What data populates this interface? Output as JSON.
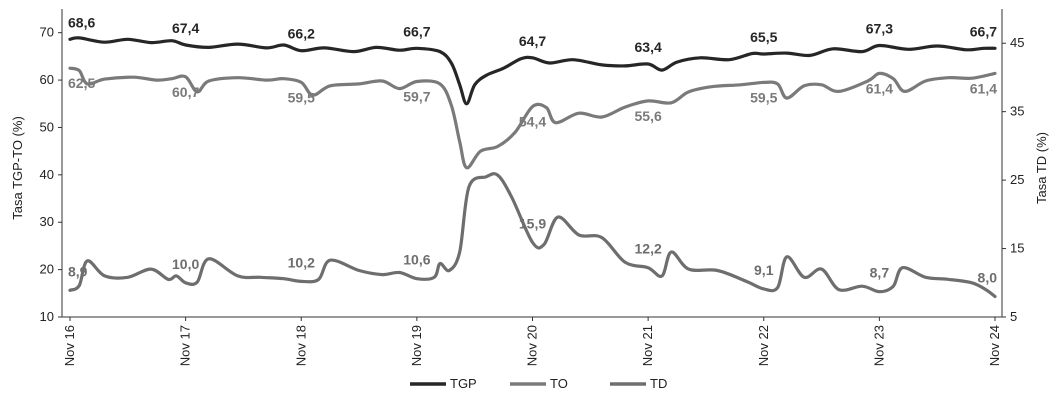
{
  "chart_data": {
    "type": "line",
    "title": "",
    "ylabel_left": "Tasa TGP-TO (%)",
    "ylabel_right": "Tasa TD (%)",
    "xlabel": "",
    "ylim_left": [
      10,
      75
    ],
    "ylim_right": [
      5,
      50
    ],
    "yticks_left": [
      "10",
      "20",
      "30",
      "40",
      "50",
      "60",
      "70"
    ],
    "yticks_right": [
      "5",
      "15",
      "25",
      "35",
      "45"
    ],
    "x_ticks": [
      "Nov 16",
      "Nov 17",
      "Nov 18",
      "Nov 19",
      "Nov 20",
      "Nov 21",
      "Nov 22",
      "Nov 23",
      "Nov 24"
    ],
    "legend": {
      "placement": "bottom",
      "entries": [
        "TGP",
        "TO",
        "TD"
      ]
    },
    "colors": {
      "TGP": "#262626",
      "TO": "#7a7a7a",
      "TD": "#6e6e6e"
    },
    "series": [
      {
        "name": "TGP",
        "axis": "left",
        "points": [
          [
            0,
            68.6
          ],
          [
            0.08,
            68.9
          ],
          [
            0.3,
            68.0
          ],
          [
            0.5,
            68.6
          ],
          [
            0.7,
            67.9
          ],
          [
            0.88,
            68.3
          ],
          [
            1.0,
            67.4
          ],
          [
            1.2,
            66.9
          ],
          [
            1.45,
            67.6
          ],
          [
            1.7,
            66.8
          ],
          [
            1.85,
            67.4
          ],
          [
            2.0,
            66.2
          ],
          [
            2.2,
            66.8
          ],
          [
            2.45,
            66.0
          ],
          [
            2.65,
            66.9
          ],
          [
            2.85,
            66.3
          ],
          [
            3.0,
            66.7
          ],
          [
            3.2,
            66.0
          ],
          [
            3.3,
            63.5
          ],
          [
            3.37,
            59.0
          ],
          [
            3.43,
            55.0
          ],
          [
            3.5,
            59.0
          ],
          [
            3.6,
            61.0
          ],
          [
            3.75,
            62.5
          ],
          [
            3.9,
            64.5
          ],
          [
            4.0,
            64.7
          ],
          [
            4.15,
            63.6
          ],
          [
            4.35,
            64.3
          ],
          [
            4.6,
            63.2
          ],
          [
            4.8,
            63.0
          ],
          [
            5.0,
            63.4
          ],
          [
            5.12,
            62.1
          ],
          [
            5.25,
            63.8
          ],
          [
            5.45,
            64.7
          ],
          [
            5.7,
            64.3
          ],
          [
            5.9,
            65.6
          ],
          [
            6.0,
            65.5
          ],
          [
            6.2,
            65.7
          ],
          [
            6.4,
            65.2
          ],
          [
            6.6,
            66.6
          ],
          [
            6.85,
            66.0
          ],
          [
            7.0,
            67.3
          ],
          [
            7.25,
            66.5
          ],
          [
            7.5,
            67.2
          ],
          [
            7.75,
            66.4
          ],
          [
            7.9,
            66.7
          ],
          [
            8.0,
            66.7
          ]
        ]
      },
      {
        "name": "TO",
        "axis": "left",
        "points": [
          [
            0,
            62.5
          ],
          [
            0.08,
            62.0
          ],
          [
            0.15,
            59.2
          ],
          [
            0.3,
            60.2
          ],
          [
            0.55,
            60.6
          ],
          [
            0.75,
            60.0
          ],
          [
            0.88,
            60.3
          ],
          [
            1.0,
            60.7
          ],
          [
            1.1,
            57.5
          ],
          [
            1.2,
            59.8
          ],
          [
            1.45,
            60.5
          ],
          [
            1.7,
            60.0
          ],
          [
            1.85,
            60.3
          ],
          [
            2.0,
            59.5
          ],
          [
            2.1,
            56.8
          ],
          [
            2.25,
            58.8
          ],
          [
            2.5,
            59.2
          ],
          [
            2.7,
            59.8
          ],
          [
            2.85,
            58.2
          ],
          [
            3.0,
            59.7
          ],
          [
            3.2,
            59.2
          ],
          [
            3.3,
            54.5
          ],
          [
            3.37,
            47.0
          ],
          [
            3.43,
            41.5
          ],
          [
            3.55,
            45.0
          ],
          [
            3.7,
            46.0
          ],
          [
            3.85,
            49.0
          ],
          [
            4.0,
            54.4
          ],
          [
            4.12,
            54.2
          ],
          [
            4.2,
            51.0
          ],
          [
            4.4,
            53.0
          ],
          [
            4.6,
            52.2
          ],
          [
            4.8,
            54.3
          ],
          [
            5.0,
            55.6
          ],
          [
            5.2,
            55.2
          ],
          [
            5.35,
            57.5
          ],
          [
            5.55,
            58.6
          ],
          [
            5.8,
            59.0
          ],
          [
            6.0,
            59.5
          ],
          [
            6.12,
            59.2
          ],
          [
            6.2,
            56.2
          ],
          [
            6.35,
            58.8
          ],
          [
            6.5,
            59.0
          ],
          [
            6.65,
            57.6
          ],
          [
            6.9,
            59.8
          ],
          [
            7.0,
            61.4
          ],
          [
            7.12,
            60.3
          ],
          [
            7.22,
            57.6
          ],
          [
            7.4,
            59.8
          ],
          [
            7.6,
            60.5
          ],
          [
            7.8,
            60.4
          ],
          [
            8.0,
            61.4
          ]
        ]
      },
      {
        "name": "TD",
        "axis": "right",
        "points": [
          [
            0,
            8.9
          ],
          [
            0.08,
            9.6
          ],
          [
            0.15,
            13.2
          ],
          [
            0.3,
            11.0
          ],
          [
            0.5,
            10.8
          ],
          [
            0.7,
            12.0
          ],
          [
            0.85,
            10.5
          ],
          [
            0.92,
            11.0
          ],
          [
            1.0,
            10.0
          ],
          [
            1.1,
            10.1
          ],
          [
            1.2,
            13.5
          ],
          [
            1.45,
            11.0
          ],
          [
            1.65,
            10.8
          ],
          [
            1.85,
            10.6
          ],
          [
            2.0,
            10.2
          ],
          [
            2.15,
            10.5
          ],
          [
            2.25,
            13.3
          ],
          [
            2.5,
            11.8
          ],
          [
            2.7,
            11.2
          ],
          [
            2.85,
            11.5
          ],
          [
            3.0,
            10.6
          ],
          [
            3.15,
            10.8
          ],
          [
            3.2,
            12.8
          ],
          [
            3.28,
            11.8
          ],
          [
            3.37,
            14.5
          ],
          [
            3.45,
            24.0
          ],
          [
            3.6,
            25.5
          ],
          [
            3.7,
            25.7
          ],
          [
            3.82,
            22.5
          ],
          [
            4.0,
            15.9
          ],
          [
            4.1,
            15.6
          ],
          [
            4.22,
            19.6
          ],
          [
            4.4,
            17.0
          ],
          [
            4.6,
            16.6
          ],
          [
            4.8,
            13.0
          ],
          [
            5.0,
            12.2
          ],
          [
            5.12,
            11.0
          ],
          [
            5.2,
            14.5
          ],
          [
            5.35,
            12.0
          ],
          [
            5.6,
            11.8
          ],
          [
            5.85,
            10.2
          ],
          [
            6.0,
            9.1
          ],
          [
            6.12,
            9.3
          ],
          [
            6.2,
            13.8
          ],
          [
            6.35,
            10.8
          ],
          [
            6.5,
            12.0
          ],
          [
            6.65,
            9.0
          ],
          [
            6.85,
            9.5
          ],
          [
            7.0,
            8.7
          ],
          [
            7.12,
            9.5
          ],
          [
            7.2,
            12.2
          ],
          [
            7.4,
            10.8
          ],
          [
            7.6,
            10.5
          ],
          [
            7.8,
            10.0
          ],
          [
            7.92,
            9.0
          ],
          [
            8.0,
            8.0
          ]
        ]
      }
    ],
    "annotations": [
      {
        "series": "TGP",
        "x": 0.0,
        "y": 68.6,
        "text": "68,6"
      },
      {
        "series": "TGP",
        "x": 1.0,
        "y": 67.4,
        "text": "67,4"
      },
      {
        "series": "TGP",
        "x": 2.0,
        "y": 66.2,
        "text": "66,2"
      },
      {
        "series": "TGP",
        "x": 3.0,
        "y": 66.7,
        "text": "66,7"
      },
      {
        "series": "TGP",
        "x": 4.0,
        "y": 64.7,
        "text": "64,7"
      },
      {
        "series": "TGP",
        "x": 5.0,
        "y": 63.4,
        "text": "63,4"
      },
      {
        "series": "TGP",
        "x": 6.0,
        "y": 65.5,
        "text": "65,5"
      },
      {
        "series": "TGP",
        "x": 7.0,
        "y": 67.3,
        "text": "67,3"
      },
      {
        "series": "TGP",
        "x": 8.0,
        "y": 66.7,
        "text": "66,7"
      },
      {
        "series": "TO",
        "x": 0.0,
        "y": 62.5,
        "text": "62,5"
      },
      {
        "series": "TO",
        "x": 1.0,
        "y": 60.7,
        "text": "60,7"
      },
      {
        "series": "TO",
        "x": 2.0,
        "y": 59.5,
        "text": "59,5"
      },
      {
        "series": "TO",
        "x": 3.0,
        "y": 59.7,
        "text": "59,7"
      },
      {
        "series": "TO",
        "x": 4.0,
        "y": 54.4,
        "text": "54,4"
      },
      {
        "series": "TO",
        "x": 5.0,
        "y": 55.6,
        "text": "55,6"
      },
      {
        "series": "TO",
        "x": 6.0,
        "y": 59.5,
        "text": "59,5"
      },
      {
        "series": "TO",
        "x": 7.0,
        "y": 61.4,
        "text": "61,4"
      },
      {
        "series": "TO",
        "x": 8.0,
        "y": 61.4,
        "text": "61,4"
      },
      {
        "series": "TD",
        "x": 0.0,
        "y": 8.9,
        "text": "8,9"
      },
      {
        "series": "TD",
        "x": 1.0,
        "y": 10.0,
        "text": "10,0"
      },
      {
        "series": "TD",
        "x": 2.0,
        "y": 10.2,
        "text": "10,2"
      },
      {
        "series": "TD",
        "x": 3.0,
        "y": 10.6,
        "text": "10,6"
      },
      {
        "series": "TD",
        "x": 4.0,
        "y": 15.9,
        "text": "15,9"
      },
      {
        "series": "TD",
        "x": 5.0,
        "y": 12.2,
        "text": "12,2"
      },
      {
        "series": "TD",
        "x": 6.0,
        "y": 9.1,
        "text": "9,1"
      },
      {
        "series": "TD",
        "x": 7.0,
        "y": 8.7,
        "text": "8,7"
      },
      {
        "series": "TD",
        "x": 8.0,
        "y": 8.0,
        "text": "8,0"
      }
    ]
  }
}
